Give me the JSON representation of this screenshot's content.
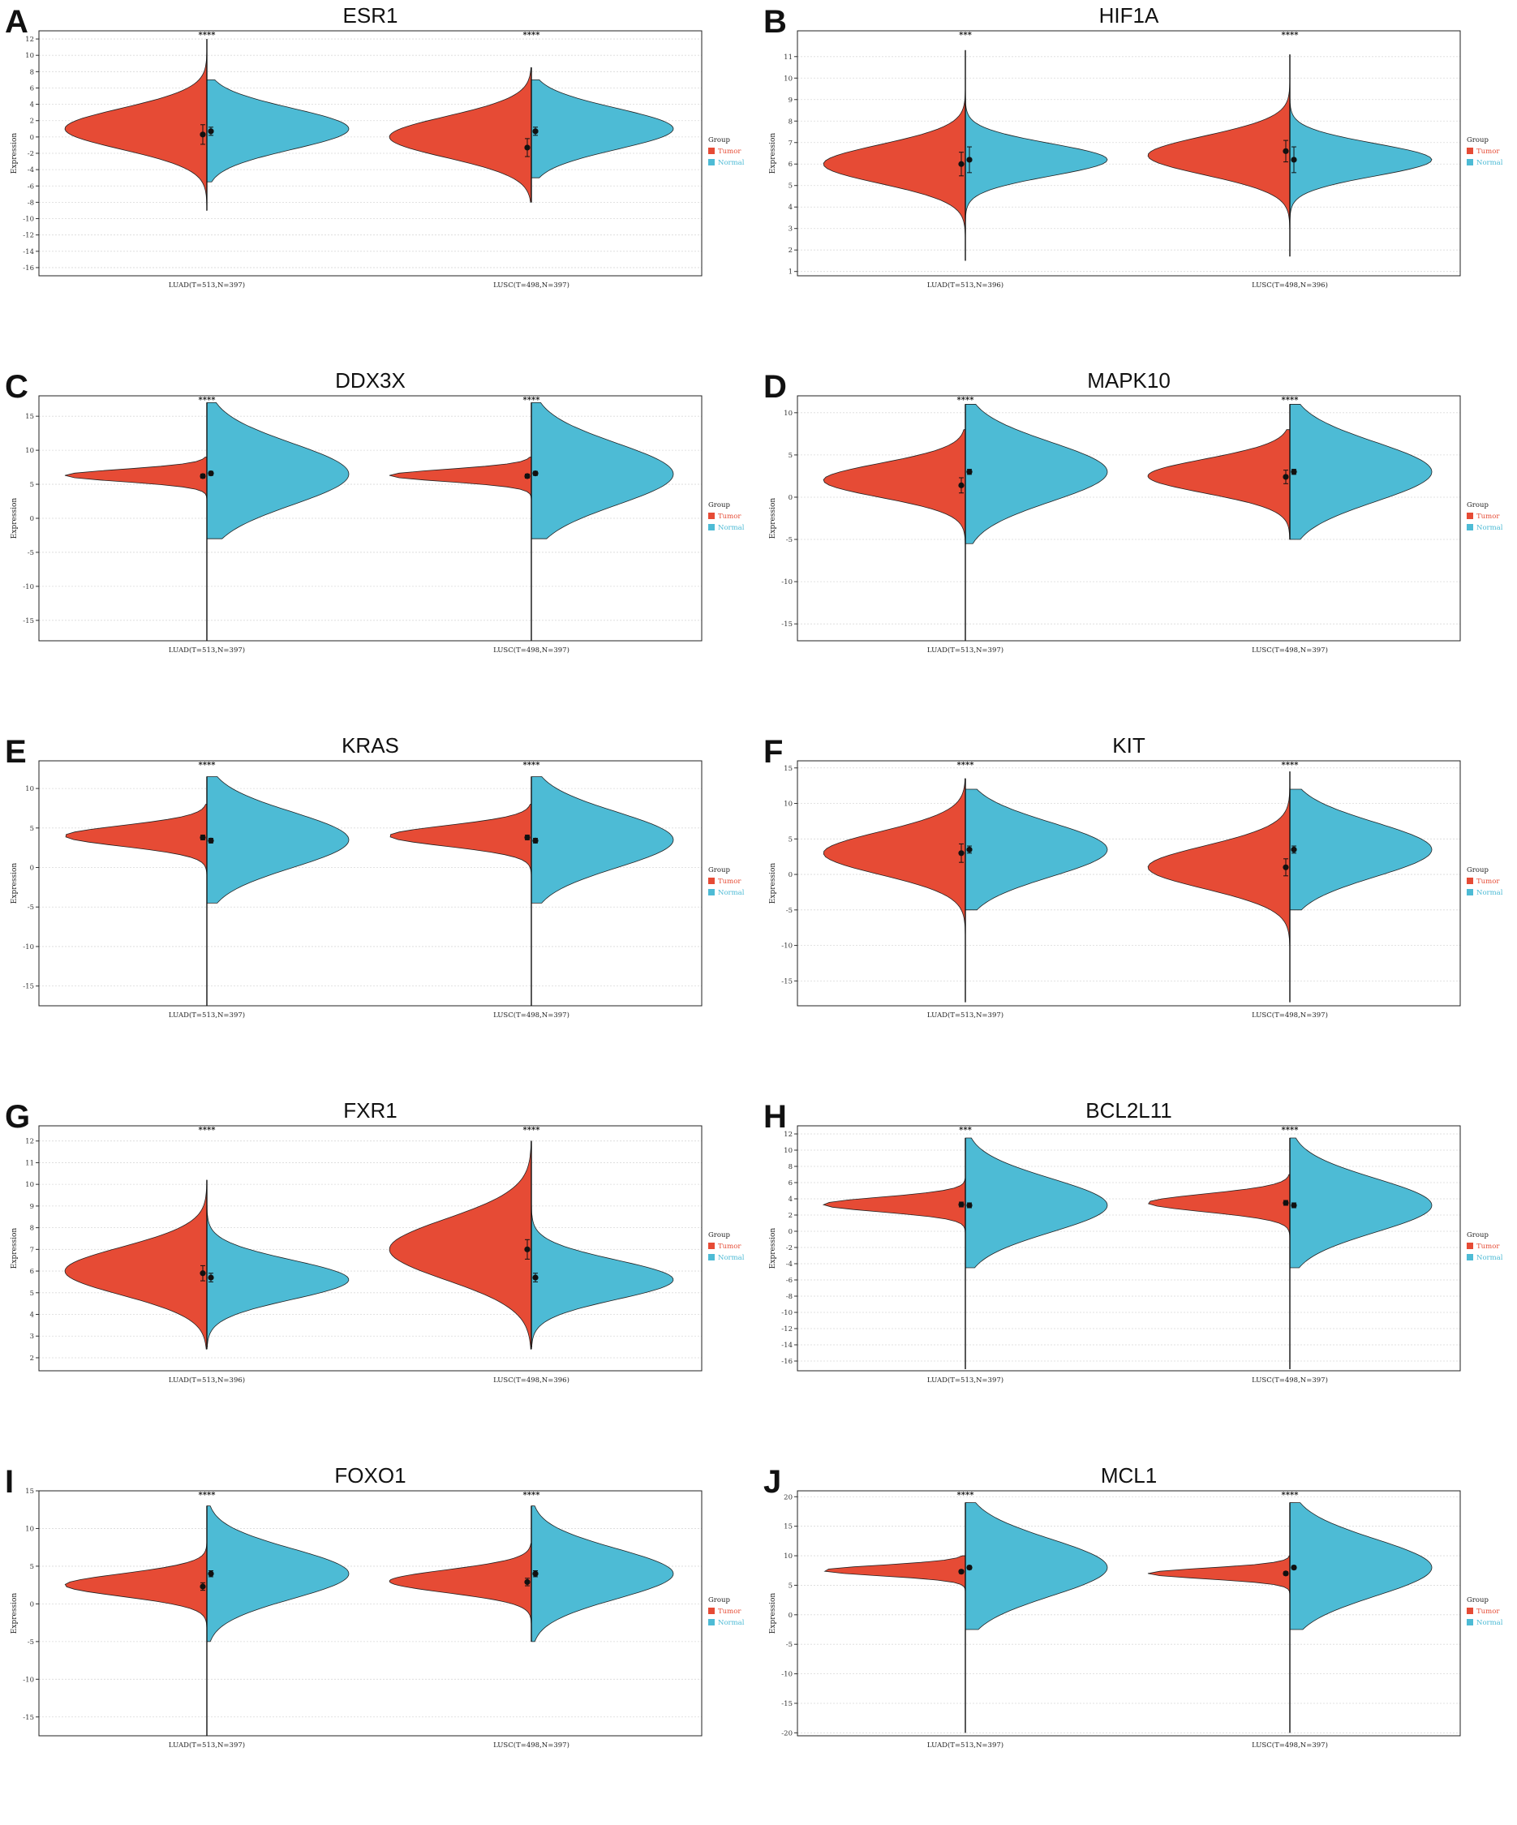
{
  "colors": {
    "tumor": "#E64B35",
    "normal": "#4DBBD5"
  },
  "chart_data": [
    {
      "panel": "A",
      "type": "split-violin",
      "title": "ESR1",
      "ylabel": "Expression",
      "ylim": [
        -17,
        13
      ],
      "yticks": [
        -16,
        -14,
        -12,
        -10,
        -8,
        -6,
        -4,
        -2,
        0,
        2,
        4,
        6,
        8,
        10,
        12
      ],
      "grid": true,
      "legend": {
        "title": "Group",
        "items": [
          "Tumor",
          "Normal"
        ],
        "position": "right"
      },
      "categories": [
        "LUAD(T=513,N=397)",
        "LUSC(T=498,N=397)"
      ],
      "significance": [
        "****",
        "****"
      ],
      "series": [
        {
          "name": "Tumor",
          "groups": [
            {
              "center": 1,
              "spread": 2.5,
              "min": -9,
              "max": 12,
              "mean": 0.3,
              "err": 1.2
            },
            {
              "center": 0,
              "spread": 2.5,
              "min": -8,
              "max": 8.5,
              "mean": -1.3,
              "err": 1.1
            }
          ]
        },
        {
          "name": "Normal",
          "groups": [
            {
              "center": 1,
              "spread": 2.5,
              "min": -5.5,
              "max": 7,
              "mean": 0.7,
              "err": 0.5
            },
            {
              "center": 1,
              "spread": 2.5,
              "min": -5,
              "max": 7,
              "mean": 0.7,
              "err": 0.5
            }
          ]
        }
      ]
    },
    {
      "panel": "B",
      "type": "split-violin",
      "title": "HIF1A",
      "ylabel": "Expression",
      "ylim": [
        0.8,
        12.2
      ],
      "yticks": [
        1,
        2,
        3,
        4,
        5,
        6,
        7,
        8,
        9,
        10,
        11
      ],
      "grid": true,
      "legend": {
        "title": "Group",
        "items": [
          "Tumor",
          "Normal"
        ],
        "position": "right"
      },
      "categories": [
        "LUAD(T=513,N=396)",
        "LUSC(T=498,N=396)"
      ],
      "significance": [
        "***",
        "****"
      ],
      "series": [
        {
          "name": "Tumor",
          "groups": [
            {
              "center": 6,
              "spread": 0.9,
              "min": 1.5,
              "max": 11.3,
              "mean": 6.0,
              "err": 0.55
            },
            {
              "center": 6.4,
              "spread": 0.9,
              "min": 2.5,
              "max": 11.1,
              "mean": 6.6,
              "err": 0.5
            }
          ]
        },
        {
          "name": "Normal",
          "groups": [
            {
              "center": 6.2,
              "spread": 0.75,
              "min": 2.5,
              "max": 10.5,
              "mean": 6.2,
              "err": 0.6
            },
            {
              "center": 6.2,
              "spread": 0.75,
              "min": 1.7,
              "max": 10.5,
              "mean": 6.2,
              "err": 0.6
            }
          ]
        }
      ]
    },
    {
      "panel": "C",
      "type": "split-violin",
      "title": "DDX3X",
      "ylabel": "Expression",
      "ylim": [
        -18,
        18
      ],
      "yticks": [
        -15,
        -10,
        -5,
        0,
        5,
        10,
        15
      ],
      "grid": true,
      "legend": {
        "title": "Group",
        "items": [
          "Tumor",
          "Normal"
        ],
        "position": "right"
      },
      "categories": [
        "LUAD(T=513,N=397)",
        "LUSC(T=498,N=397)"
      ],
      "significance": [
        "****",
        "****"
      ],
      "series": [
        {
          "name": "Tumor",
          "groups": [
            {
              "center": 6.3,
              "spread": 0.9,
              "min": -18,
              "max": 9,
              "mean": 6.2,
              "err": 0.3
            },
            {
              "center": 6.3,
              "spread": 0.9,
              "min": -18,
              "max": 9,
              "mean": 6.2,
              "err": 0.3
            }
          ]
        },
        {
          "name": "Normal",
          "groups": [
            {
              "center": 6.5,
              "spread": 4.5,
              "min": -3,
              "max": 17,
              "mean": 6.6,
              "err": 0.3
            },
            {
              "center": 6.5,
              "spread": 4.5,
              "min": -3,
              "max": 17,
              "mean": 6.6,
              "err": 0.3
            }
          ]
        }
      ]
    },
    {
      "panel": "D",
      "type": "split-violin",
      "title": "MAPK10",
      "ylabel": "Expression",
      "ylim": [
        -17,
        12
      ],
      "yticks": [
        -15,
        -10,
        -5,
        0,
        5,
        10
      ],
      "grid": true,
      "legend": {
        "title": "Group",
        "items": [
          "Tumor",
          "Normal"
        ],
        "position": "right"
      },
      "categories": [
        "LUAD(T=513,N=397)",
        "LUSC(T=498,N=397)"
      ],
      "significance": [
        "****",
        "****"
      ],
      "series": [
        {
          "name": "Tumor",
          "groups": [
            {
              "center": 2,
              "spread": 2,
              "min": -17,
              "max": 8,
              "mean": 1.4,
              "err": 0.9
            },
            {
              "center": 2.5,
              "spread": 2,
              "min": -5,
              "max": 8,
              "mean": 2.4,
              "err": 0.8
            }
          ]
        },
        {
          "name": "Normal",
          "groups": [
            {
              "center": 3,
              "spread": 3.5,
              "min": -5.5,
              "max": 11,
              "mean": 3.0,
              "err": 0.3
            },
            {
              "center": 3,
              "spread": 3.5,
              "min": -5,
              "max": 11,
              "mean": 3.0,
              "err": 0.3
            }
          ]
        }
      ]
    },
    {
      "panel": "E",
      "type": "split-violin",
      "title": "KRAS",
      "ylabel": "Expression",
      "ylim": [
        -17.5,
        13.5
      ],
      "yticks": [
        -15,
        -10,
        -5,
        0,
        5,
        10
      ],
      "grid": true,
      "legend": {
        "title": "Group",
        "items": [
          "Tumor",
          "Normal"
        ],
        "position": "right"
      },
      "categories": [
        "LUAD(T=513,N=397)",
        "LUSC(T=498,N=397)"
      ],
      "significance": [
        "****",
        "****"
      ],
      "series": [
        {
          "name": "Tumor",
          "groups": [
            {
              "center": 4,
              "spread": 1.3,
              "min": -17.5,
              "max": 8,
              "mean": 3.8,
              "err": 0.3
            },
            {
              "center": 4,
              "spread": 1.3,
              "min": -17.5,
              "max": 8,
              "mean": 3.8,
              "err": 0.3
            }
          ]
        },
        {
          "name": "Normal",
          "groups": [
            {
              "center": 3.5,
              "spread": 3.5,
              "min": -4.5,
              "max": 11.5,
              "mean": 3.4,
              "err": 0.3
            },
            {
              "center": 3.5,
              "spread": 3.5,
              "min": -4.5,
              "max": 11.5,
              "mean": 3.4,
              "err": 0.3
            }
          ]
        }
      ]
    },
    {
      "panel": "F",
      "type": "split-violin",
      "title": "KIT",
      "ylabel": "Expression",
      "ylim": [
        -18.5,
        16
      ],
      "yticks": [
        -15,
        -10,
        -5,
        0,
        5,
        10,
        15
      ],
      "grid": true,
      "legend": {
        "title": "Group",
        "items": [
          "Tumor",
          "Normal"
        ],
        "position": "right"
      },
      "categories": [
        "LUAD(T=513,N=397)",
        "LUSC(T=498,N=397)"
      ],
      "significance": [
        "****",
        "****"
      ],
      "series": [
        {
          "name": "Tumor",
          "groups": [
            {
              "center": 3,
              "spread": 3,
              "min": -18,
              "max": 13.5,
              "mean": 3.0,
              "err": 1.3
            },
            {
              "center": 1,
              "spread": 3,
              "min": -18,
              "max": 14.5,
              "mean": 1.0,
              "err": 1.2
            }
          ]
        },
        {
          "name": "Normal",
          "groups": [
            {
              "center": 3.5,
              "spread": 3.8,
              "min": -5,
              "max": 12,
              "mean": 3.5,
              "err": 0.5
            },
            {
              "center": 3.5,
              "spread": 3.8,
              "min": -5,
              "max": 12,
              "mean": 3.5,
              "err": 0.5
            }
          ]
        }
      ]
    },
    {
      "panel": "G",
      "type": "split-violin",
      "title": "FXR1",
      "ylabel": "Expression",
      "ylim": [
        1.4,
        12.7
      ],
      "yticks": [
        2,
        3,
        4,
        5,
        6,
        7,
        8,
        9,
        10,
        11,
        12
      ],
      "grid": true,
      "legend": {
        "title": "Group",
        "items": [
          "Tumor",
          "Normal"
        ],
        "position": "right"
      },
      "categories": [
        "LUAD(T=513,N=396)",
        "LUSC(T=498,N=396)"
      ],
      "significance": [
        "****",
        "****"
      ],
      "series": [
        {
          "name": "Tumor",
          "groups": [
            {
              "center": 6,
              "spread": 1.1,
              "min": 2.4,
              "max": 10.2,
              "mean": 5.9,
              "err": 0.35
            },
            {
              "center": 7,
              "spread": 1.4,
              "min": 2.4,
              "max": 12.0,
              "mean": 7.0,
              "err": 0.45
            }
          ]
        },
        {
          "name": "Normal",
          "groups": [
            {
              "center": 5.6,
              "spread": 0.9,
              "min": 2.5,
              "max": 9.5,
              "mean": 5.7,
              "err": 0.2
            },
            {
              "center": 5.6,
              "spread": 0.9,
              "min": 2.5,
              "max": 9.5,
              "mean": 5.7,
              "err": 0.2
            }
          ]
        }
      ]
    },
    {
      "panel": "H",
      "type": "split-violin",
      "title": "BCL2L11",
      "ylabel": "Expression",
      "ylim": [
        -17.2,
        13
      ],
      "yticks": [
        -16,
        -14,
        -12,
        -10,
        -8,
        -6,
        -4,
        -2,
        0,
        2,
        4,
        6,
        8,
        10,
        12
      ],
      "grid": true,
      "legend": {
        "title": "Group",
        "items": [
          "Tumor",
          "Normal"
        ],
        "position": "right"
      },
      "categories": [
        "LUAD(T=513,N=397)",
        "LUSC(T=498,N=397)"
      ],
      "significance": [
        "***",
        "****"
      ],
      "series": [
        {
          "name": "Tumor",
          "groups": [
            {
              "center": 3.3,
              "spread": 0.9,
              "min": -17,
              "max": 6.5,
              "mean": 3.3,
              "err": 0.3
            },
            {
              "center": 3.5,
              "spread": 1.1,
              "min": -17,
              "max": 7,
              "mean": 3.5,
              "err": 0.3
            }
          ]
        },
        {
          "name": "Normal",
          "groups": [
            {
              "center": 3.2,
              "spread": 3.3,
              "min": -4.5,
              "max": 11.5,
              "mean": 3.2,
              "err": 0.3
            },
            {
              "center": 3.2,
              "spread": 3.3,
              "min": -4.5,
              "max": 11.5,
              "mean": 3.2,
              "err": 0.3
            }
          ]
        }
      ]
    },
    {
      "panel": "I",
      "type": "split-violin",
      "title": "FOXO1",
      "ylabel": "Expression",
      "ylim": [
        -17.5,
        15
      ],
      "yticks": [
        -15,
        -10,
        -5,
        0,
        5,
        10,
        15
      ],
      "grid": true,
      "legend": {
        "title": "Group",
        "items": [
          "Tumor",
          "Normal"
        ],
        "position": "right"
      },
      "categories": [
        "LUAD(T=513,N=397)",
        "LUSC(T=498,N=397)"
      ],
      "significance": [
        "****",
        "****"
      ],
      "series": [
        {
          "name": "Tumor",
          "groups": [
            {
              "center": 2.5,
              "spread": 1.5,
              "min": -17.5,
              "max": 8,
              "mean": 2.3,
              "err": 0.5
            },
            {
              "center": 3,
              "spread": 1.5,
              "min": -4,
              "max": 8,
              "mean": 2.9,
              "err": 0.5
            }
          ]
        },
        {
          "name": "Normal",
          "groups": [
            {
              "center": 4,
              "spread": 3.3,
              "min": -5,
              "max": 13,
              "mean": 4.0,
              "err": 0.4
            },
            {
              "center": 4,
              "spread": 3.3,
              "min": -5,
              "max": 13,
              "mean": 4.0,
              "err": 0.4
            }
          ]
        }
      ]
    },
    {
      "panel": "J",
      "type": "split-violin",
      "title": "MCL1",
      "ylabel": "Expression",
      "ylim": [
        -20.5,
        21
      ],
      "yticks": [
        -20,
        -15,
        -10,
        -5,
        0,
        5,
        10,
        15,
        20
      ],
      "grid": true,
      "legend": {
        "title": "Group",
        "items": [
          "Tumor",
          "Normal"
        ],
        "position": "right"
      },
      "categories": [
        "LUAD(T=513,N=397)",
        "LUSC(T=498,N=397)"
      ],
      "significance": [
        "****",
        "****"
      ],
      "series": [
        {
          "name": "Tumor",
          "groups": [
            {
              "center": 7.5,
              "spread": 0.9,
              "min": -20,
              "max": 10,
              "mean": 7.3,
              "err": 0.3
            },
            {
              "center": 7,
              "spread": 0.9,
              "min": -20,
              "max": 10,
              "mean": 7.0,
              "err": 0.3
            }
          ]
        },
        {
          "name": "Normal",
          "groups": [
            {
              "center": 8,
              "spread": 4.8,
              "min": -2.5,
              "max": 19,
              "mean": 8.0,
              "err": 0.3
            },
            {
              "center": 8,
              "spread": 4.8,
              "min": -2.5,
              "max": 19,
              "mean": 8.0,
              "err": 0.3
            }
          ]
        }
      ]
    }
  ]
}
